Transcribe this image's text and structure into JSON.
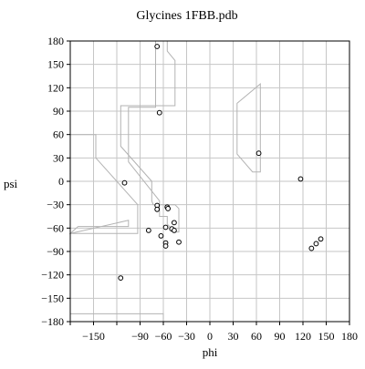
{
  "chart_data": {
    "type": "scatter",
    "title": "Glycines  1FBB.pdb",
    "xlabel": "phi",
    "ylabel": "psi",
    "xlim": [
      -180,
      180
    ],
    "ylim": [
      -180,
      180
    ],
    "x_ticks": [
      -180,
      -150,
      -120,
      -90,
      -60,
      -30,
      0,
      30,
      60,
      90,
      120,
      150,
      180
    ],
    "x_tick_labels": [
      "",
      "−150",
      "",
      "−90",
      "−60",
      "−30",
      "0",
      "30",
      "60",
      "90",
      "120",
      "150",
      "180"
    ],
    "y_ticks": [
      180,
      150,
      120,
      90,
      60,
      30,
      0,
      -30,
      -60,
      -90,
      -120,
      -150,
      -180
    ],
    "y_tick_labels": [
      "180",
      "150",
      "120",
      "90",
      "60",
      "30",
      "0",
      "−30",
      "−60",
      "−90",
      "−120",
      "−150",
      "−180"
    ],
    "grid": true,
    "points": [
      {
        "x": -68,
        "y": 173
      },
      {
        "x": -65,
        "y": 88
      },
      {
        "x": 63,
        "y": 36
      },
      {
        "x": 117,
        "y": 3
      },
      {
        "x": -110,
        "y": -2
      },
      {
        "x": -68,
        "y": -31
      },
      {
        "x": -68,
        "y": -36
      },
      {
        "x": -55,
        "y": -33
      },
      {
        "x": -54,
        "y": -35
      },
      {
        "x": -46,
        "y": -53
      },
      {
        "x": -57,
        "y": -59
      },
      {
        "x": -49,
        "y": -61
      },
      {
        "x": -46,
        "y": -63
      },
      {
        "x": -79,
        "y": -63
      },
      {
        "x": -63,
        "y": -70
      },
      {
        "x": -57,
        "y": -79
      },
      {
        "x": -57,
        "y": -83
      },
      {
        "x": -40,
        "y": -78
      },
      {
        "x": 143,
        "y": -74
      },
      {
        "x": 137,
        "y": -80
      },
      {
        "x": 131,
        "y": -86
      },
      {
        "x": -115,
        "y": -124
      }
    ],
    "regions": [
      [
        [
          -180,
          60
        ],
        [
          -180,
          -67
        ],
        [
          -93,
          -67
        ],
        [
          -93,
          -30
        ],
        [
          -147,
          30
        ],
        [
          -147,
          60
        ]
      ],
      [
        [
          -180,
          -67
        ],
        [
          -170,
          -58
        ],
        [
          -105,
          -58
        ],
        [
          -105,
          -50
        ]
      ],
      [
        [
          -70,
          180
        ],
        [
          -55,
          180
        ],
        [
          -55,
          167
        ],
        [
          -45,
          155
        ],
        [
          -45,
          97
        ],
        [
          -115,
          97
        ],
        [
          -115,
          45
        ],
        [
          -75,
          0
        ],
        [
          -75,
          -25
        ],
        [
          -73,
          -30
        ],
        [
          -45,
          -30
        ],
        [
          -40,
          -35
        ],
        [
          -40,
          -65
        ],
        [
          -45,
          -65
        ],
        [
          -55,
          -55
        ],
        [
          -55,
          -45
        ],
        [
          -65,
          -45
        ],
        [
          -65,
          -25
        ],
        [
          -105,
          25
        ],
        [
          -105,
          95
        ],
        [
          -70,
          95
        ]
      ],
      [
        [
          35,
          100
        ],
        [
          65,
          125
        ],
        [
          65,
          12
        ],
        [
          55,
          12
        ],
        [
          35,
          35
        ]
      ],
      [
        [
          -180,
          -180
        ],
        [
          -180,
          -170
        ],
        [
          -60,
          -170
        ],
        [
          -60,
          -180
        ]
      ]
    ]
  }
}
